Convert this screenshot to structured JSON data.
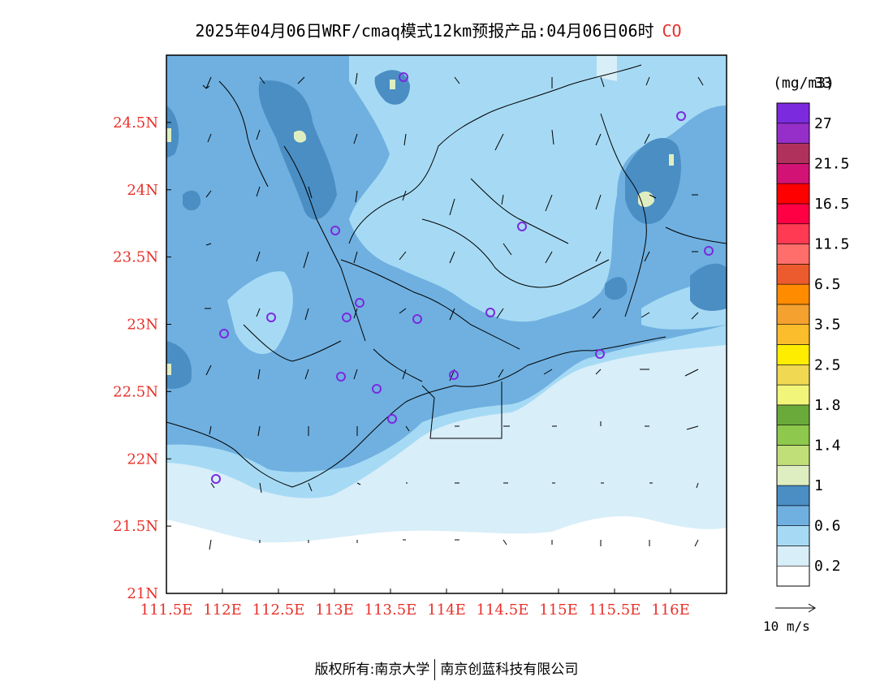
{
  "header": {
    "title": "2025年04月06日WRF/cmaq模式12km预报产品:04月06日06时",
    "species": "CO"
  },
  "map": {
    "lon_ticks": [
      "111.5E",
      "112E",
      "112.5E",
      "113E",
      "113.5E",
      "114E",
      "114.5E",
      "115E",
      "115.5E",
      "116E"
    ],
    "lat_ticks": [
      "21N",
      "21.5N",
      "22N",
      "22.5N",
      "23N",
      "23.5N",
      "24N",
      "24.5N"
    ],
    "extent": {
      "lon": [
        111.5,
        116.5
      ],
      "lat": [
        21.0,
        25.0
      ]
    },
    "axis_label_color": "#e8302a"
  },
  "legend": {
    "unit": "(mg/m3)",
    "labels": [
      "0.2",
      "0.6",
      "1",
      "1.4",
      "1.8",
      "2.5",
      "3.5",
      "6.5",
      "11.5",
      "16.5",
      "21.5",
      "27",
      "33"
    ],
    "colors": [
      "#ffffff",
      "#d8eef9",
      "#a6daf4",
      "#6fb0e0",
      "#4a8ec4",
      "#dfeec1",
      "#c1df78",
      "#8ec84d",
      "#6aaa3a",
      "#f1f57a",
      "#f1d852",
      "#ffed00",
      "#fbbd2b",
      "#f4a12f",
      "#ff8b00",
      "#ec5b2e",
      "#ff6e6a",
      "#ff3a52",
      "#ff0045",
      "#ff0000",
      "#d21274",
      "#b0315b",
      "#962fc9",
      "#7b2ade"
    ]
  },
  "wind": {
    "scale_label": "10 m/s"
  },
  "footer": {
    "left": "版权所有:南京大学",
    "right": "南京创蓝科技有限公司"
  }
}
